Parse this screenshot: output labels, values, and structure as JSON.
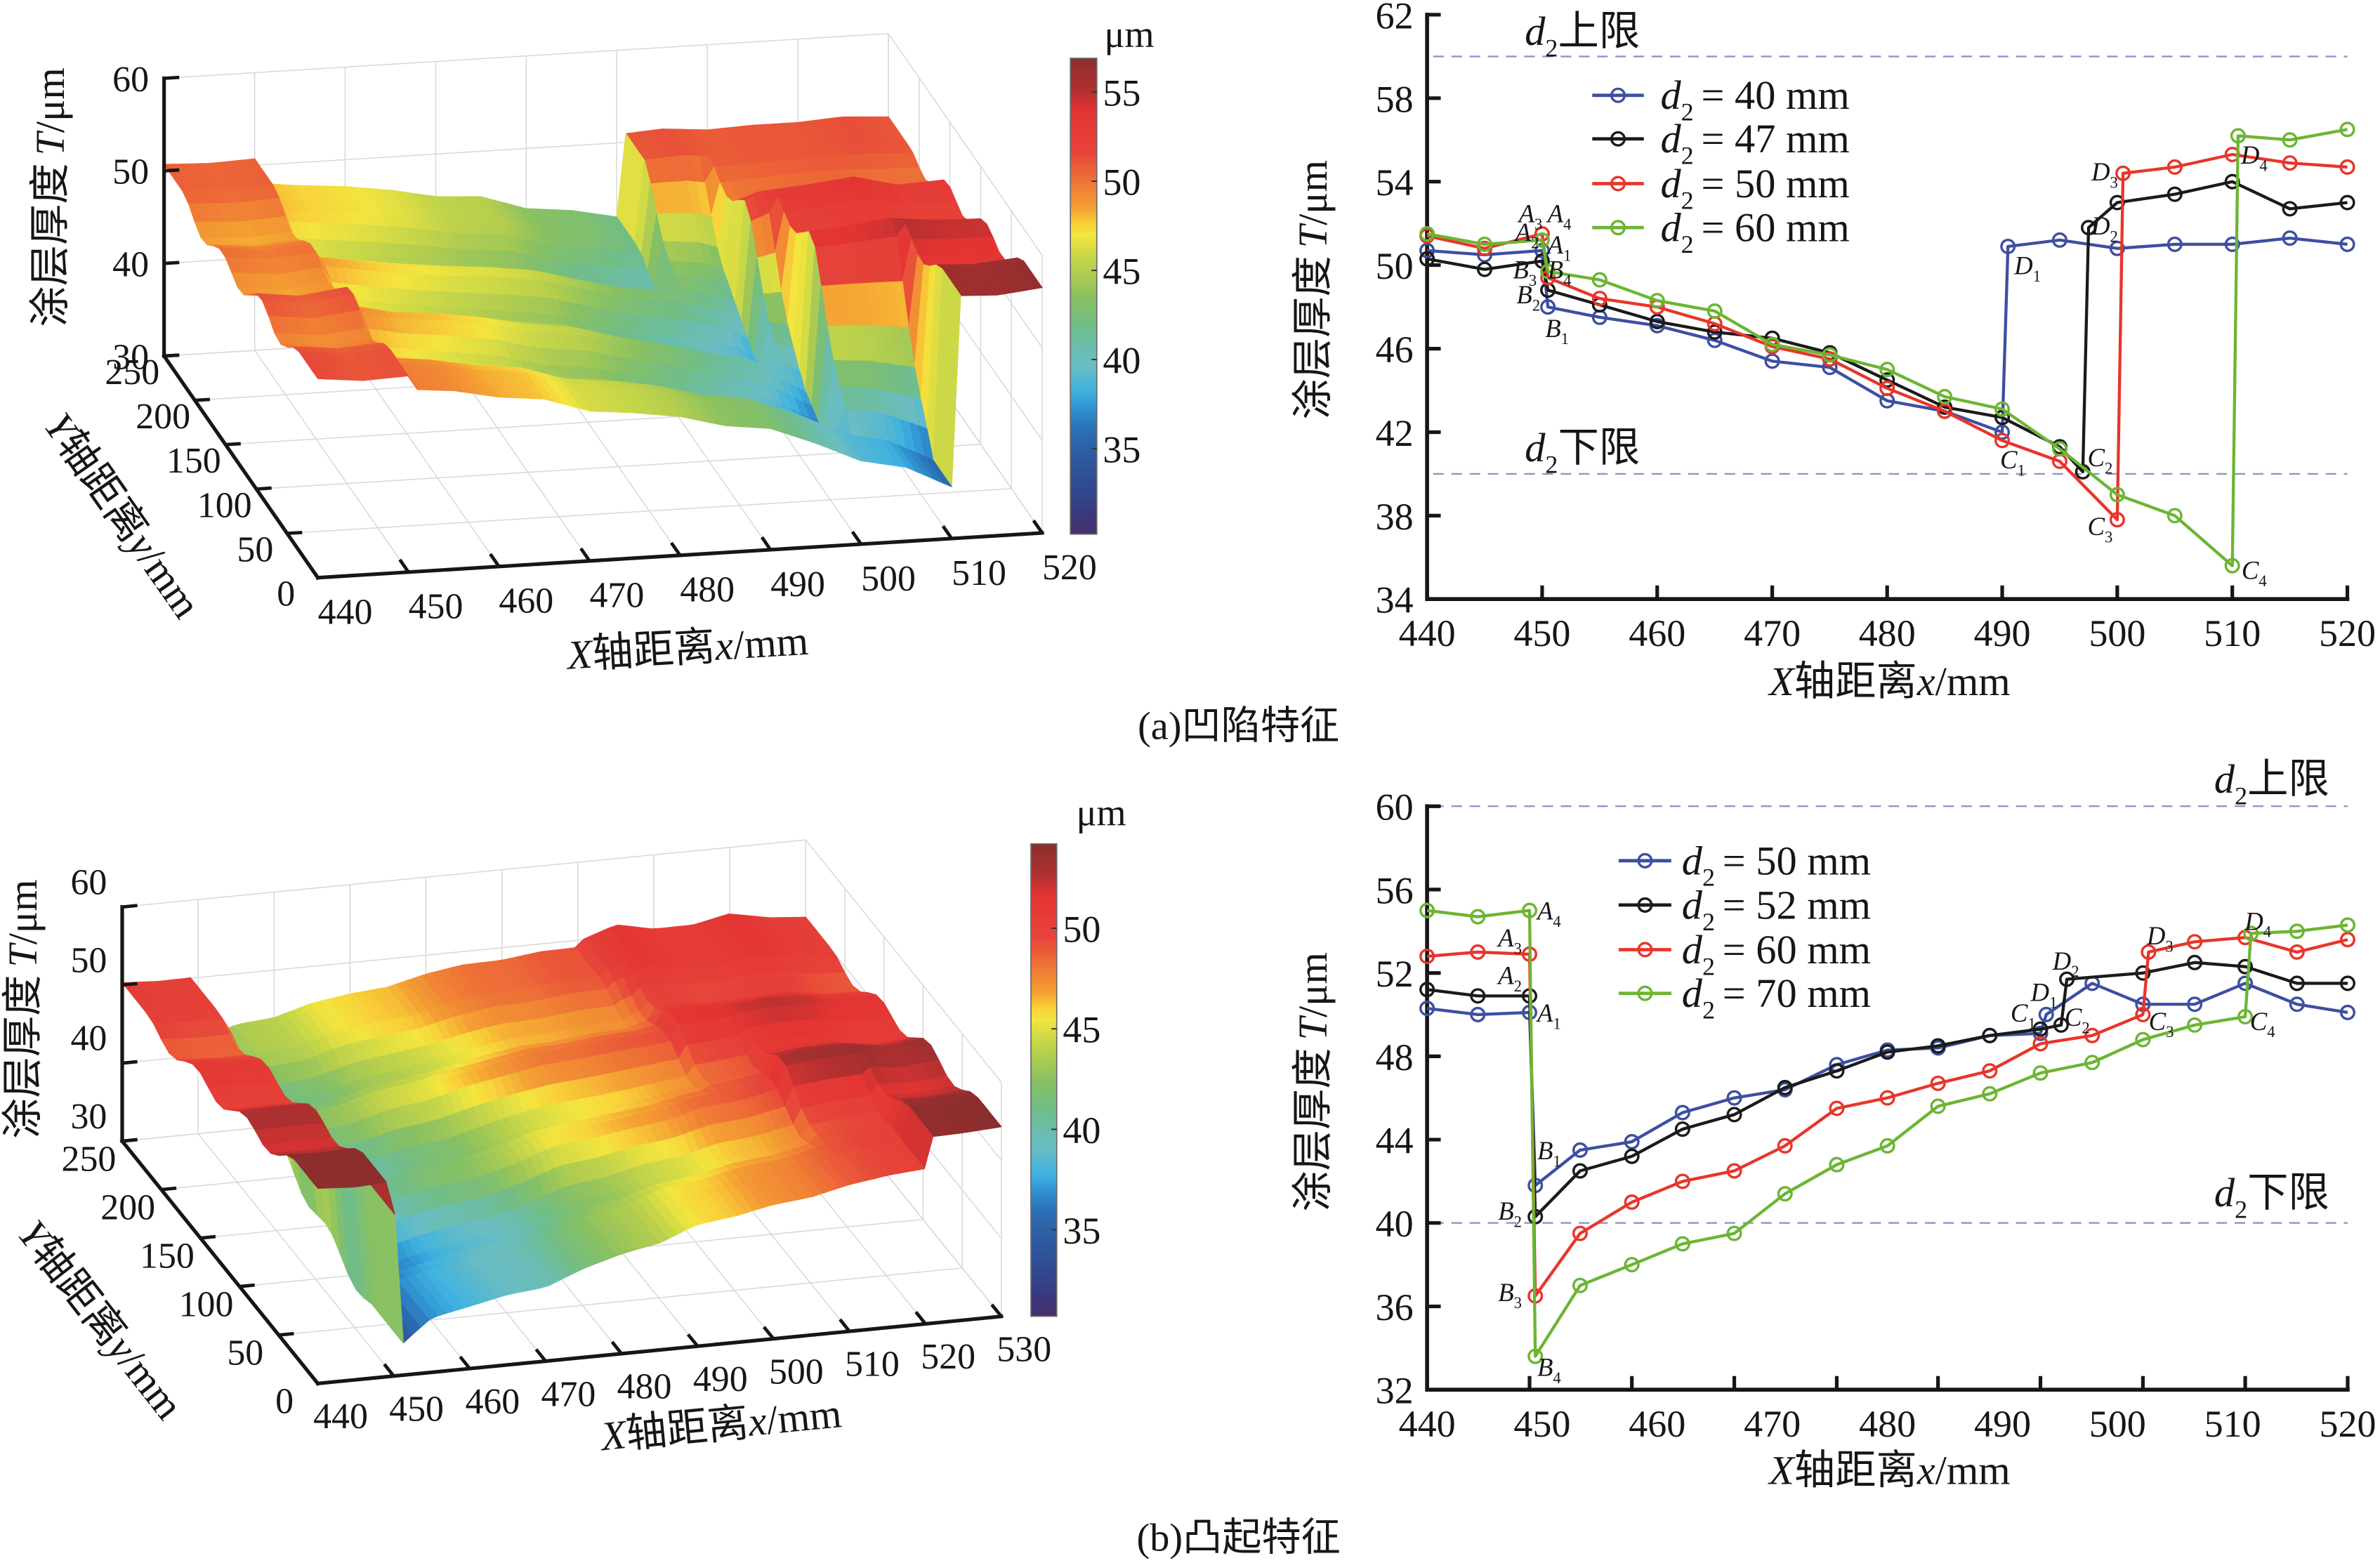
{
  "figure": {
    "captions": [
      {
        "tag": "(a)",
        "text": "凹陷特征"
      },
      {
        "tag": "(b)",
        "text": "凸起特征"
      }
    ]
  },
  "style": {
    "reference_line_color": "#8a96c8",
    "grid_color": "#d8d8d8",
    "colormap": [
      [
        0,
        "#46306b"
      ],
      [
        0.036,
        "#3b377a"
      ],
      [
        0.088,
        "#31478f"
      ],
      [
        0.162,
        "#2e5aa0"
      ],
      [
        0.219,
        "#2b6fb4"
      ],
      [
        0.263,
        "#2f8fcf"
      ],
      [
        0.299,
        "#3fb2e0"
      ],
      [
        0.355,
        "#6abdc2"
      ],
      [
        0.394,
        "#6bbdac"
      ],
      [
        0.438,
        "#70bd88"
      ],
      [
        0.496,
        "#88c063"
      ],
      [
        0.551,
        "#b2cd4f"
      ],
      [
        0.584,
        "#c9d748"
      ],
      [
        0.628,
        "#f3e53e"
      ],
      [
        0.65,
        "#f8d33a"
      ],
      [
        0.686,
        "#f4a033"
      ],
      [
        0.743,
        "#ee7336"
      ],
      [
        0.803,
        "#e6433a"
      ],
      [
        0.891,
        "#e33433"
      ],
      [
        0.933,
        "#b03030"
      ],
      [
        1,
        "#8c2e2e"
      ]
    ]
  },
  "chart_data": [
    {
      "panel": "a",
      "type": "heatmap",
      "render_as": "3d-surface",
      "title": "",
      "xlabel": {
        "v1": "X",
        "t1": "轴距离",
        "v2": "x",
        "t2": "/mm"
      },
      "ylabel": {
        "v1": "Y",
        "t1": "轴距离",
        "v2": "y",
        "t2": "/mm"
      },
      "zlabel": {
        "t0": "涂层厚度",
        "v1": "T",
        "t1": "/μm"
      },
      "xlim": [
        440,
        520
      ],
      "xticks": [
        440,
        450,
        460,
        470,
        480,
        490,
        500,
        510,
        520
      ],
      "ylim": [
        0,
        250
      ],
      "yticks": [
        0,
        50,
        100,
        150,
        200,
        250
      ],
      "zlim": [
        30,
        60
      ],
      "zticks": [
        30,
        40,
        50,
        60
      ],
      "grid": true,
      "colorbar": {
        "label": "μm",
        "range": [
          30.2,
          56.9
        ],
        "ticks": [
          35,
          40,
          45,
          50,
          55
        ],
        "placement": "right"
      },
      "profile_chart": 1,
      "surface_rows": [
        {
          "y": 31,
          "profile_series": 3
        },
        {
          "y": 94,
          "profile_series": 2
        },
        {
          "y": 156,
          "profile_series": 1
        },
        {
          "y": 219,
          "profile_series": 0
        }
      ]
    },
    {
      "panel": "a",
      "type": "line",
      "title": "",
      "xlabel": {
        "v1": "X",
        "t1": "轴距离",
        "v2": "x",
        "t2": "/mm"
      },
      "ylabel": {
        "t0": "涂层厚度",
        "v1": "T",
        "t1": "/μm"
      },
      "xlim": [
        440,
        520
      ],
      "xticks": [
        440,
        450,
        460,
        470,
        480,
        490,
        500,
        510,
        520
      ],
      "ylim": [
        34,
        62
      ],
      "yticks": [
        34,
        38,
        42,
        46,
        50,
        54,
        58,
        62
      ],
      "grid": false,
      "legend": {
        "placement": "top-center"
      },
      "reference_lines": [
        {
          "value": 60,
          "var": "d",
          "sub": "2",
          "text": "上限",
          "label_x": 453.5,
          "label_y": 61.2
        },
        {
          "value": 40,
          "var": "d",
          "sub": "2",
          "text": "下限",
          "label_x": 453.5,
          "label_y": 41.25
        }
      ],
      "series": [
        {
          "var": "d",
          "sub": "2",
          "rest": "= 40 mm",
          "color": "#3d4fa0",
          "x": [
            440,
            445,
            450,
            450.5,
            455,
            460,
            465,
            470,
            475,
            480,
            485,
            490,
            490.5,
            495,
            500,
            505,
            510,
            515,
            520
          ],
          "y": [
            50.7,
            50.5,
            50.7,
            48.0,
            47.5,
            47.1,
            46.4,
            45.4,
            45.1,
            43.5,
            43.0,
            42.0,
            50.9,
            51.2,
            50.8,
            51.0,
            51.0,
            51.3,
            51.0
          ]
        },
        {
          "var": "d",
          "sub": "2",
          "rest": "= 47 mm",
          "color": "#1a1a1a",
          "x": [
            440,
            445,
            450,
            450.5,
            455,
            460,
            465,
            470,
            475,
            480,
            485,
            490,
            495,
            497,
            497.5,
            500,
            505,
            510,
            515,
            520
          ],
          "y": [
            50.3,
            49.8,
            50.2,
            48.8,
            48.1,
            47.3,
            46.8,
            46.5,
            45.8,
            44.5,
            43.2,
            42.7,
            41.3,
            40.1,
            51.8,
            53.0,
            53.4,
            54.0,
            52.7,
            53.0
          ]
        },
        {
          "var": "d",
          "sub": "2",
          "rest": "= 50 mm",
          "color": "#e8352b",
          "x": [
            440,
            445,
            450,
            450.5,
            455,
            460,
            465,
            470,
            475,
            480,
            485,
            490,
            495,
            500,
            500.5,
            505,
            510,
            515,
            520
          ],
          "y": [
            51.4,
            50.8,
            51.5,
            49.4,
            48.4,
            48.0,
            47.2,
            46.1,
            45.5,
            44.1,
            43.0,
            41.6,
            40.6,
            37.8,
            54.4,
            54.7,
            55.3,
            54.9,
            54.7
          ]
        },
        {
          "var": "d",
          "sub": "2",
          "rest": "= 60 mm",
          "color": "#6cb533",
          "x": [
            440,
            445,
            450,
            450.5,
            455,
            460,
            465,
            470,
            475,
            480,
            485,
            490,
            495,
            500,
            505,
            510,
            510.5,
            515,
            520
          ],
          "y": [
            51.5,
            51.0,
            51.2,
            49.7,
            49.3,
            48.3,
            47.8,
            46.2,
            45.7,
            45.0,
            43.7,
            43.1,
            41.2,
            39.0,
            38.0,
            35.6,
            56.2,
            56.0,
            56.5
          ]
        }
      ],
      "annotations": [
        {
          "letter": "A",
          "sub": "3",
          "x": 449.0,
          "y": 52.5
        },
        {
          "letter": "A",
          "sub": "4",
          "x": 451.5,
          "y": 52.5
        },
        {
          "letter": "A",
          "sub": "2",
          "x": 448.7,
          "y": 51.6
        },
        {
          "letter": "A",
          "sub": "1",
          "x": 451.5,
          "y": 51.0
        },
        {
          "letter": "B",
          "sub": "3",
          "x": 448.5,
          "y": 49.8
        },
        {
          "letter": "B",
          "sub": "4",
          "x": 451.5,
          "y": 49.8
        },
        {
          "letter": "B",
          "sub": "2",
          "x": 448.8,
          "y": 48.6
        },
        {
          "letter": "B",
          "sub": "1",
          "x": 451.3,
          "y": 47.0
        },
        {
          "letter": "C",
          "sub": "1",
          "x": 490.9,
          "y": 40.7
        },
        {
          "letter": "D",
          "sub": "1",
          "x": 492.2,
          "y": 50.0
        },
        {
          "letter": "C",
          "sub": "2",
          "x": 498.5,
          "y": 40.8
        },
        {
          "letter": "D",
          "sub": "2",
          "x": 498.9,
          "y": 51.9
        },
        {
          "letter": "C",
          "sub": "3",
          "x": 498.5,
          "y": 37.5
        },
        {
          "letter": "D",
          "sub": "3",
          "x": 498.9,
          "y": 54.5
        },
        {
          "letter": "C",
          "sub": "4",
          "x": 511.9,
          "y": 35.4
        },
        {
          "letter": "D",
          "sub": "4",
          "x": 511.9,
          "y": 55.3
        }
      ]
    },
    {
      "panel": "b",
      "type": "heatmap",
      "render_as": "3d-surface",
      "title": "",
      "xlabel": {
        "v1": "X",
        "t1": "轴距离",
        "v2": "x",
        "t2": "/mm"
      },
      "ylabel": {
        "v1": "Y",
        "t1": "轴距离",
        "v2": "y",
        "t2": "/mm"
      },
      "zlabel": {
        "t0": "涂层厚度",
        "v1": "T",
        "t1": "/μm"
      },
      "xlim": [
        440,
        530
      ],
      "xticks": [
        440,
        450,
        460,
        470,
        480,
        490,
        500,
        510,
        520,
        530
      ],
      "ylim": [
        0,
        250
      ],
      "yticks": [
        0,
        50,
        100,
        150,
        200,
        250
      ],
      "zlim": [
        30,
        60
      ],
      "zticks": [
        30,
        40,
        50,
        60
      ],
      "grid": true,
      "colorbar": {
        "label": "μm",
        "range": [
          30.7,
          54.2
        ],
        "ticks": [
          35,
          40,
          45,
          50
        ],
        "placement": "right"
      },
      "profile_chart": 3,
      "surface_rows": [
        {
          "y": 31,
          "profile_series": 3
        },
        {
          "y": 94,
          "profile_series": 2
        },
        {
          "y": 156,
          "profile_series": 1
        },
        {
          "y": 219,
          "profile_series": 0
        }
      ]
    },
    {
      "panel": "b",
      "type": "line",
      "title": "",
      "xlabel": {
        "v1": "X",
        "t1": "轴距离",
        "v2": "x",
        "t2": "/mm"
      },
      "ylabel": {
        "t0": "涂层厚度",
        "v1": "T",
        "t1": "/μm"
      },
      "xlim": [
        440,
        520
      ],
      "xticks": [
        440,
        450,
        460,
        470,
        480,
        490,
        500,
        510,
        520
      ],
      "xtick_marks": [
        440,
        448.9,
        457.8,
        466.7,
        475.6,
        484.4,
        493.3,
        502.2,
        511.1,
        520
      ],
      "ylim": [
        32,
        60
      ],
      "yticks": [
        32,
        36,
        40,
        44,
        48,
        52,
        56,
        60
      ],
      "grid": false,
      "legend": {
        "placement": "top-center"
      },
      "reference_lines": [
        {
          "value": 60,
          "var": "d",
          "sub": "2",
          "text": "上限",
          "label_x": 513.4,
          "label_y": 61.3
        },
        {
          "value": 40,
          "var": "d",
          "sub": "2",
          "text": "下限",
          "label_x": 513.4,
          "label_y": 41.45
        }
      ],
      "series": [
        {
          "var": "d",
          "sub": "2",
          "rest": "= 50 mm",
          "color": "#3d4fa0",
          "x": [
            440,
            444.4,
            448.9,
            449.4,
            453.3,
            457.8,
            462.2,
            466.7,
            471.1,
            475.6,
            480,
            484.4,
            488.9,
            493.3,
            493.8,
            497.8,
            502.2,
            506.7,
            511.1,
            515.6,
            520
          ],
          "y": [
            50.3,
            50.0,
            50.1,
            41.8,
            43.5,
            43.9,
            45.3,
            46.0,
            46.4,
            47.6,
            48.3,
            48.4,
            49.0,
            49.1,
            50.0,
            51.5,
            50.5,
            50.5,
            51.5,
            50.5,
            50.1
          ]
        },
        {
          "var": "d",
          "sub": "2",
          "rest": "= 52 mm",
          "color": "#1a1a1a",
          "x": [
            440,
            444.4,
            448.9,
            449.4,
            453.3,
            457.8,
            462.2,
            466.7,
            471.1,
            475.6,
            480,
            484.4,
            488.9,
            493.3,
            495.1,
            495.6,
            502.2,
            506.7,
            511.1,
            515.6,
            520
          ],
          "y": [
            51.2,
            50.9,
            50.9,
            40.3,
            42.5,
            43.2,
            44.5,
            45.2,
            46.5,
            47.3,
            48.2,
            48.5,
            49.0,
            49.3,
            49.5,
            51.7,
            52.0,
            52.5,
            52.3,
            51.5,
            51.5
          ]
        },
        {
          "var": "d",
          "sub": "2",
          "rest": "= 60 mm",
          "color": "#e8352b",
          "x": [
            440,
            444.4,
            448.9,
            449.4,
            453.3,
            457.8,
            462.2,
            466.7,
            471.1,
            475.6,
            480,
            484.4,
            488.9,
            493.3,
            497.8,
            502.2,
            502.7,
            506.7,
            511.1,
            515.6,
            520
          ],
          "y": [
            52.8,
            53.0,
            52.9,
            36.5,
            39.5,
            41.0,
            42.0,
            42.5,
            43.7,
            45.5,
            46.0,
            46.7,
            47.3,
            48.6,
            49.0,
            50.0,
            53.0,
            53.5,
            53.7,
            53.0,
            53.6
          ]
        },
        {
          "var": "d",
          "sub": "2",
          "rest": "= 70 mm",
          "color": "#6cb533",
          "x": [
            440,
            444.4,
            448.9,
            449.4,
            453.3,
            457.8,
            462.2,
            466.7,
            471.1,
            475.6,
            480,
            484.4,
            488.9,
            493.3,
            497.8,
            502.2,
            506.7,
            511.1,
            511.6,
            515.6,
            520
          ],
          "y": [
            55.0,
            54.7,
            55.0,
            33.6,
            37.0,
            38.0,
            39.0,
            39.5,
            41.4,
            42.8,
            43.7,
            45.6,
            46.2,
            47.2,
            47.7,
            48.8,
            49.5,
            49.9,
            53.9,
            54.0,
            54.3
          ]
        }
      ],
      "annotations": [
        {
          "letter": "A",
          "sub": "4",
          "x": 450.6,
          "y": 55.0
        },
        {
          "letter": "A",
          "sub": "3",
          "x": 447.2,
          "y": 53.7
        },
        {
          "letter": "A",
          "sub": "2",
          "x": 447.2,
          "y": 51.9
        },
        {
          "letter": "A",
          "sub": "1",
          "x": 450.6,
          "y": 50.1
        },
        {
          "letter": "B",
          "sub": "1",
          "x": 450.6,
          "y": 43.5
        },
        {
          "letter": "B",
          "sub": "2",
          "x": 447.2,
          "y": 40.6
        },
        {
          "letter": "B",
          "sub": "3",
          "x": 447.2,
          "y": 36.7
        },
        {
          "letter": "B",
          "sub": "4",
          "x": 450.6,
          "y": 33.1
        },
        {
          "letter": "C",
          "sub": "1",
          "x": 491.8,
          "y": 50.1
        },
        {
          "letter": "D",
          "sub": "1",
          "x": 493.6,
          "y": 51.1
        },
        {
          "letter": "C",
          "sub": "2",
          "x": 496.5,
          "y": 49.9
        },
        {
          "letter": "D",
          "sub": "2",
          "x": 495.5,
          "y": 52.6
        },
        {
          "letter": "C",
          "sub": "3",
          "x": 503.8,
          "y": 49.7
        },
        {
          "letter": "D",
          "sub": "3",
          "x": 503.7,
          "y": 53.8
        },
        {
          "letter": "C",
          "sub": "4",
          "x": 512.6,
          "y": 49.7
        },
        {
          "letter": "D",
          "sub": "4",
          "x": 512.2,
          "y": 54.5
        }
      ]
    }
  ]
}
